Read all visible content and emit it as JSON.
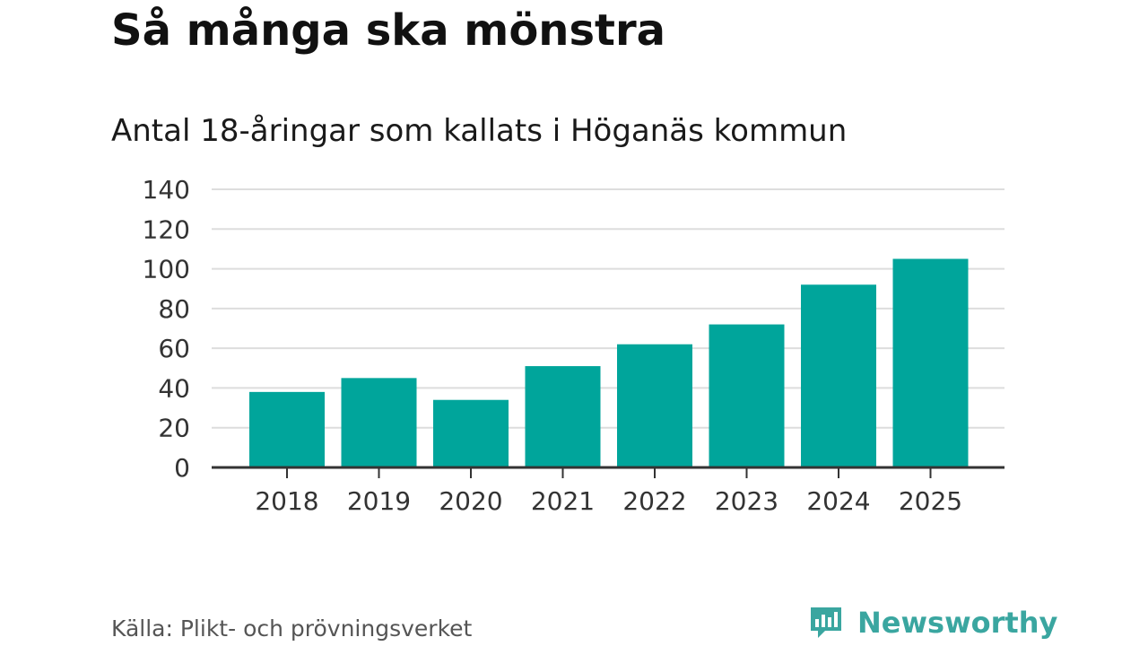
{
  "title": "Så många ska mönstra",
  "subtitle": "Antal 18-åringar som kallats i Höganäs kommun",
  "source": "Källa: Plikt- och prövningsverket",
  "brand": {
    "name": "Newsworthy",
    "icon": "newsworthy-chart-bubble-icon",
    "color": "#3aa6a0"
  },
  "colors": {
    "bar": "#00a59b",
    "grid": "#dddddd",
    "axis": "#333333"
  },
  "chart_data": {
    "type": "bar",
    "categories": [
      "2018",
      "2019",
      "2020",
      "2021",
      "2022",
      "2023",
      "2024",
      "2025"
    ],
    "values": [
      38,
      45,
      34,
      51,
      62,
      72,
      92,
      105
    ],
    "yticks": [
      "0",
      "20",
      "40",
      "60",
      "80",
      "100",
      "120",
      "140"
    ],
    "ylim": [
      0,
      140
    ],
    "xlabel": "",
    "ylabel": "",
    "grid": true,
    "legend": "none"
  }
}
